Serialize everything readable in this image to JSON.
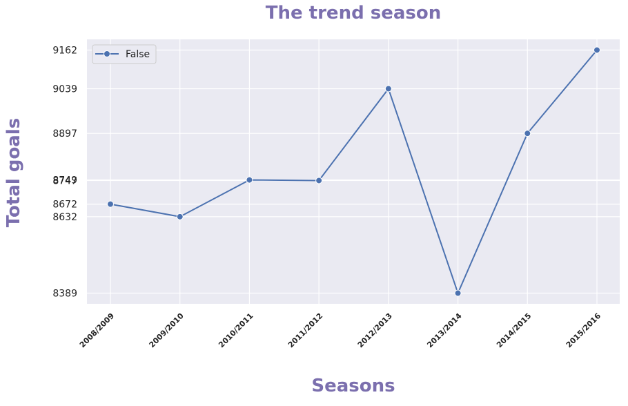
{
  "chart_data": {
    "type": "line",
    "title": "The trend season",
    "xlabel": "Seasons",
    "ylabel": "Total goals",
    "categories": [
      "2008/2009",
      "2009/2010",
      "2010/2011",
      "2011/2012",
      "2012/2013",
      "2013/2014",
      "2014/2015",
      "2015/2016"
    ],
    "series": [
      {
        "name": "False",
        "values": [
          8672,
          8632,
          8749,
          8747,
          9039,
          8389,
          8897,
          9162
        ]
      }
    ],
    "yticks": [
      "8389",
      "8632",
      "8672",
      "8747",
      "8749",
      "8897",
      "9039",
      "9162"
    ],
    "ylim": [
      8355,
      9196
    ],
    "grid": true,
    "legend": "top-left",
    "colors": {
      "line": "#4c72b0",
      "background": "#eaeaf2",
      "grid": "#ffffff",
      "label": "#7b6fae"
    }
  }
}
